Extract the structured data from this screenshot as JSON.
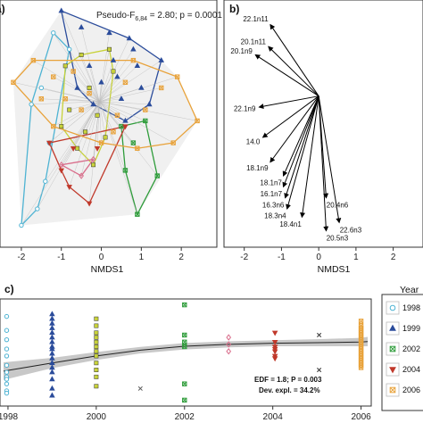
{
  "chart_data": [
    {
      "type": "scatter",
      "panel": "a)",
      "annotation": "Pseudo-F",
      "annotation_sub": "6,84",
      "annotation_tail": " = 2.80; p = 0.0001",
      "xlabel": "NMDS1",
      "xlim": [
        -2.4,
        2.8
      ],
      "ylim": [
        -2.3,
        2.0
      ],
      "xticks": [
        "-2",
        "-1",
        "0",
        "1",
        "2"
      ],
      "centroid": [
        -0.05,
        0.25
      ],
      "series": [
        {
          "year": "1998",
          "color": "#4eb3d3",
          "marker": "circle",
          "points": [
            [
              -1.75,
              0.2
            ],
            [
              -1.5,
              0.5
            ],
            [
              -1.3,
              -0.5
            ],
            [
              -1.4,
              -1.2
            ],
            [
              -1.6,
              -1.7
            ],
            [
              -2.0,
              -2.0
            ],
            [
              -1.2,
              1.5
            ],
            [
              -0.8,
              1.2
            ]
          ]
        },
        {
          "year": "1999",
          "color": "#2b4c9b",
          "marker": "triangle",
          "points": [
            [
              -1.0,
              1.9
            ],
            [
              -0.5,
              1.6
            ],
            [
              0.2,
              1.5
            ],
            [
              0.8,
              1.2
            ],
            [
              1.5,
              1.0
            ],
            [
              0.9,
              0.9
            ],
            [
              0.4,
              0.7
            ],
            [
              0.0,
              0.6
            ],
            [
              -0.3,
              0.9
            ],
            [
              0.5,
              0.3
            ],
            [
              1.0,
              0.5
            ],
            [
              0.6,
              -0.1
            ],
            [
              -0.2,
              0.2
            ],
            [
              1.2,
              0.2
            ],
            [
              0.3,
              1.0
            ],
            [
              -0.6,
              0.5
            ],
            [
              0.7,
              1.4
            ]
          ]
        },
        {
          "year": "2000",
          "color": "#c8d23a",
          "marker": "square",
          "points": [
            [
              -0.9,
              0.9
            ],
            [
              -0.5,
              1.1
            ],
            [
              -0.3,
              0.5
            ],
            [
              -0.8,
              0.1
            ],
            [
              -0.4,
              -0.3
            ],
            [
              0.1,
              -0.4
            ],
            [
              -0.2,
              -0.9
            ],
            [
              -0.6,
              -0.6
            ],
            [
              0.3,
              0.8
            ],
            [
              -1.0,
              -0.2
            ],
            [
              0.2,
              1.2
            ],
            [
              -0.1,
              0.0
            ]
          ]
        },
        {
          "year": "2002",
          "color": "#2e9c3a",
          "marker": "xsquare",
          "points": [
            [
              1.1,
              -0.1
            ],
            [
              0.8,
              -0.5
            ],
            [
              0.5,
              -0.2
            ],
            [
              1.4,
              -1.1
            ],
            [
              0.9,
              -1.8
            ],
            [
              0.6,
              -1.0
            ]
          ]
        },
        {
          "year": "2004",
          "color": "#c0392b",
          "marker": "triangle-down",
          "points": [
            [
              -1.3,
              -0.5
            ],
            [
              -0.7,
              -0.6
            ],
            [
              -0.1,
              -0.6
            ],
            [
              0.6,
              -0.2
            ],
            [
              -0.8,
              -1.3
            ],
            [
              -0.3,
              -1.6
            ],
            [
              -1.0,
              -1.0
            ]
          ]
        },
        {
          "year": "2005",
          "color": "#d96c8a",
          "marker": "diamond",
          "points": [
            [
              -1.0,
              -0.9
            ],
            [
              -0.5,
              -1.1
            ],
            [
              -0.2,
              -0.8
            ]
          ]
        },
        {
          "year": "2006",
          "color": "#e8a23a",
          "marker": "xsquare",
          "points": [
            [
              -2.2,
              0.6
            ],
            [
              -1.7,
              1.0
            ],
            [
              -1.2,
              0.7
            ],
            [
              -0.7,
              0.8
            ],
            [
              0.8,
              1.0
            ],
            [
              1.5,
              0.5
            ],
            [
              2.4,
              -0.1
            ],
            [
              1.8,
              -0.5
            ],
            [
              0.9,
              -0.6
            ],
            [
              0.3,
              -0.3
            ],
            [
              -0.5,
              0.1
            ],
            [
              -1.2,
              -0.2
            ],
            [
              -0.9,
              0.3
            ],
            [
              0.6,
              0.6
            ],
            [
              -1.5,
              0.3
            ],
            [
              1.1,
              0.1
            ],
            [
              1.9,
              0.7
            ],
            [
              0.0,
              -0.5
            ],
            [
              -0.3,
              0.4
            ],
            [
              0.4,
              0.0
            ]
          ]
        }
      ]
    },
    {
      "type": "biplot",
      "panel": "b)",
      "xlabel": "NMDS1",
      "xlim": [
        -2.4,
        2.8
      ],
      "ylim": [
        -2.3,
        2.0
      ],
      "xticks": [
        "-2",
        "-1",
        "0",
        "1",
        "2"
      ],
      "origin": [
        0.0,
        0.35
      ],
      "vectors": [
        {
          "label": "22.1n11",
          "x": -1.3,
          "y": 1.65
        },
        {
          "label": "20.1n11",
          "x": -1.35,
          "y": 1.25
        },
        {
          "label": "20.1n9",
          "x": -1.7,
          "y": 1.1
        },
        {
          "label": "22.1n9",
          "x": -1.6,
          "y": 0.15
        },
        {
          "label": "14.0",
          "x": -1.5,
          "y": -0.4
        },
        {
          "label": "18.1n9",
          "x": -1.3,
          "y": -0.85
        },
        {
          "label": "18.1n7",
          "x": -0.95,
          "y": -1.1
        },
        {
          "label": "16.1n7",
          "x": -0.95,
          "y": -1.3
        },
        {
          "label": "16.3n6",
          "x": -0.9,
          "y": -1.5
        },
        {
          "label": "18.3n4",
          "x": -0.85,
          "y": -1.7
        },
        {
          "label": "18.4n1",
          "x": -0.45,
          "y": -1.85
        },
        {
          "label": "20.4n6",
          "x": 0.2,
          "y": -1.5
        },
        {
          "label": "22.6n3",
          "x": 0.55,
          "y": -1.95
        },
        {
          "label": "20.5n3",
          "x": 0.2,
          "y": -2.1
        }
      ]
    },
    {
      "type": "scatter",
      "panel": "c)",
      "xlim": [
        1997.9,
        2006.15
      ],
      "ylim": [
        -2.3,
        2.0
      ],
      "xticks": [
        "1998",
        "2000",
        "2002",
        "2004",
        "2006"
      ],
      "note_line1": "EDF = 1.8; P = 0.003",
      "note_line2": "Dev. expl. = 34.2%",
      "legend_title": "Year",
      "smooth_fit": [
        [
          1997.9,
          -0.95
        ],
        [
          1999,
          -0.6
        ],
        [
          2000,
          -0.3
        ],
        [
          2001,
          -0.05
        ],
        [
          2002,
          0.12
        ],
        [
          2003,
          0.2
        ],
        [
          2004,
          0.25
        ],
        [
          2005,
          0.27
        ],
        [
          2006,
          0.3
        ],
        [
          2006.15,
          0.32
        ]
      ],
      "smooth_se": [
        [
          1997.9,
          0.38
        ],
        [
          1999,
          0.22
        ],
        [
          2000,
          0.17
        ],
        [
          2001,
          0.14
        ],
        [
          2002,
          0.14
        ],
        [
          2003,
          0.13
        ],
        [
          2004,
          0.13
        ],
        [
          2005,
          0.15
        ],
        [
          2006,
          0.18
        ],
        [
          2006.15,
          0.2
        ]
      ],
      "series": [
        {
          "year": "1998",
          "x": 1997.97,
          "color": "#4eb3d3",
          "marker": "circle",
          "y": [
            1.4,
            0.8,
            0.4,
            0.0,
            -0.3,
            -0.7,
            -1.0,
            -1.2,
            -1.3,
            -1.5,
            -1.8,
            -1.9
          ]
        },
        {
          "year": "1999",
          "x": 1999.0,
          "color": "#2b4c9b",
          "marker": "triangle",
          "y": [
            1.5,
            1.3,
            1.1,
            0.9,
            0.7,
            0.5,
            0.3,
            0.1,
            0.0,
            -0.2,
            -0.4,
            -0.6,
            -0.8,
            -1.0,
            -1.3,
            -1.7,
            -2.0
          ]
        },
        {
          "year": "2000",
          "x": 2000.0,
          "color": "#c8d23a",
          "marker": "square",
          "y": [
            1.3,
            1.0,
            0.7,
            0.5,
            0.3,
            0.1,
            -0.1,
            -0.3,
            -0.6,
            -0.9,
            -1.2,
            -1.6
          ]
        },
        {
          "year": "2002",
          "x": 2002.0,
          "color": "#2e9c3a",
          "marker": "xsquare",
          "y": [
            1.9,
            0.6,
            0.3,
            0.1,
            -1.5,
            -2.2
          ]
        },
        {
          "year": "2004",
          "x": 2004.05,
          "color": "#c0392b",
          "marker": "triangle-down",
          "y": [
            0.7,
            0.3,
            0.1,
            0.0,
            -0.1,
            -0.3,
            -0.4
          ]
        },
        {
          "year": "2005",
          "x": 2003.0,
          "color": "#d96c8a",
          "marker": "diamond",
          "y": [
            0.5,
            0.2,
            -0.1
          ]
        },
        {
          "year": "2005b",
          "x": 2005.05,
          "color": "#333333",
          "marker": "x",
          "y": [
            0.6,
            -0.9
          ]
        },
        {
          "year": "2001",
          "x": 2001.0,
          "color": "#555555",
          "marker": "x",
          "y": [
            -1.7
          ]
        },
        {
          "year": "2006",
          "x": 2006.0,
          "color": "#e8a23a",
          "marker": "xsquare",
          "y": [
            1.2,
            1.0,
            0.9,
            0.8,
            0.7,
            0.6,
            0.5,
            0.4,
            0.3,
            0.2,
            0.1,
            0.0,
            -0.1,
            -0.2,
            -0.3,
            -0.4,
            -0.5,
            -0.6,
            -0.7,
            -0.8
          ]
        }
      ],
      "legend": [
        {
          "label": "1998",
          "color": "#4eb3d3",
          "marker": "circle"
        },
        {
          "label": "1999",
          "color": "#2b4c9b",
          "marker": "triangle"
        },
        {
          "label": "2002",
          "color": "#2e9c3a",
          "marker": "xsquare"
        },
        {
          "label": "2004",
          "color": "#c0392b",
          "marker": "triangle-down"
        },
        {
          "label": "2006",
          "color": "#e8a23a",
          "marker": "xsquare"
        }
      ]
    }
  ]
}
